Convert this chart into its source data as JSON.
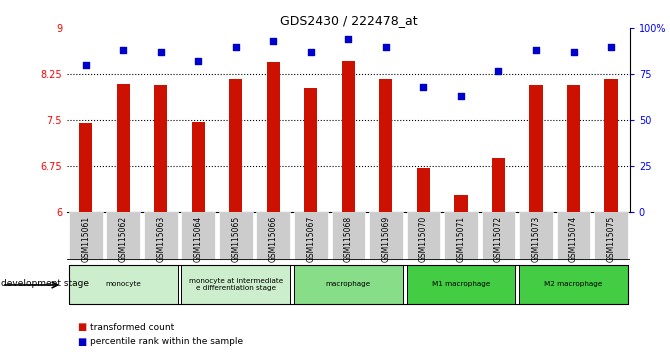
{
  "title": "GDS2430 / 222478_at",
  "samples": [
    "GSM115061",
    "GSM115062",
    "GSM115063",
    "GSM115064",
    "GSM115065",
    "GSM115066",
    "GSM115067",
    "GSM115068",
    "GSM115069",
    "GSM115070",
    "GSM115071",
    "GSM115072",
    "GSM115073",
    "GSM115074",
    "GSM115075"
  ],
  "bar_values": [
    7.45,
    8.1,
    8.08,
    7.47,
    8.18,
    8.45,
    8.02,
    8.47,
    8.18,
    6.72,
    6.28,
    6.88,
    8.08,
    8.07,
    8.17
  ],
  "dot_values": [
    80,
    88,
    87,
    82,
    90,
    93,
    87,
    94,
    90,
    68,
    63,
    77,
    88,
    87,
    90
  ],
  "ylim_left": [
    6,
    9
  ],
  "ylim_right": [
    0,
    100
  ],
  "yticks_left": [
    6,
    6.75,
    7.5,
    8.25,
    9
  ],
  "yticks_right": [
    0,
    25,
    50,
    75,
    100
  ],
  "ytick_labels_left": [
    "6",
    "6.75",
    "7.5",
    "8.25",
    "9"
  ],
  "ytick_labels_right": [
    "0",
    "25",
    "50",
    "75",
    "100%"
  ],
  "hlines": [
    6.75,
    7.5,
    8.25
  ],
  "bar_color": "#cc1100",
  "dot_color": "#0000cc",
  "tick_bg_color": "#cccccc",
  "dev_stage_label": "development stage",
  "legend_bar_label": "transformed count",
  "legend_dot_label": "percentile rank within the sample",
  "groups": [
    {
      "label": "monocyte",
      "start": 0,
      "end": 3,
      "color": "#cceecc"
    },
    {
      "label": "monocyte at intermediate\ne differentiation stage",
      "start": 3,
      "end": 6,
      "color": "#cceecc"
    },
    {
      "label": "macrophage",
      "start": 6,
      "end": 9,
      "color": "#88dd88"
    },
    {
      "label": "M1 macrophage",
      "start": 9,
      "end": 12,
      "color": "#44cc44"
    },
    {
      "label": "M2 macrophage",
      "start": 12,
      "end": 15,
      "color": "#44cc44"
    }
  ]
}
